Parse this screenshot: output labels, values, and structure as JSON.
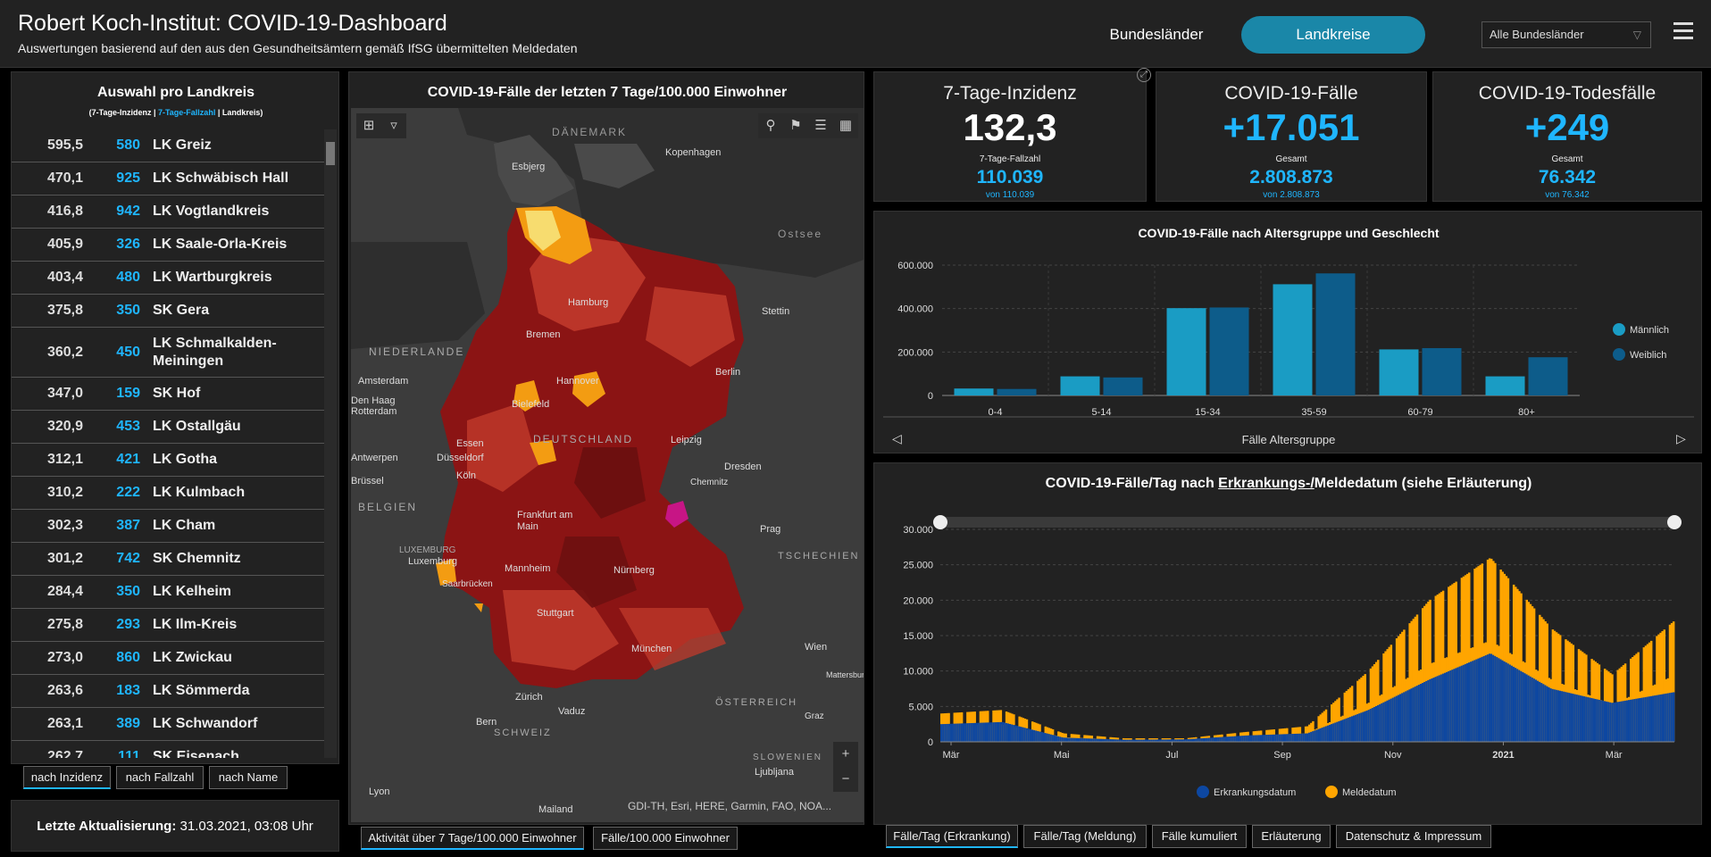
{
  "header": {
    "title": "Robert Koch-Institut: COVID-19-Dashboard",
    "subtitle": "Auswertungen basierend auf den aus den Gesundheitsämtern gemäß IfSG übermittelten Meldedaten",
    "nav_bundeslaender": "Bundesländer",
    "nav_landkreise": "Landkreise",
    "region_select": "Alle Bundesländer"
  },
  "list": {
    "title": "Auswahl pro Landkreis",
    "legend_a": "(7-Tage-Inzidenz | ",
    "legend_b": "7-Tage-Fallzahl",
    "legend_c": " | Landkreis)",
    "rows": [
      {
        "inc": "595,5",
        "cases": "580",
        "name": "LK Greiz"
      },
      {
        "inc": "470,1",
        "cases": "925",
        "name": "LK Schwäbisch Hall"
      },
      {
        "inc": "416,8",
        "cases": "942",
        "name": "LK Vogtlandkreis"
      },
      {
        "inc": "405,9",
        "cases": "326",
        "name": "LK Saale-Orla-Kreis"
      },
      {
        "inc": "403,4",
        "cases": "480",
        "name": "LK Wartburgkreis"
      },
      {
        "inc": "375,8",
        "cases": "350",
        "name": "SK Gera"
      },
      {
        "inc": "360,2",
        "cases": "450",
        "name": "LK Schmalkalden-Meiningen"
      },
      {
        "inc": "347,0",
        "cases": "159",
        "name": "SK Hof"
      },
      {
        "inc": "320,9",
        "cases": "453",
        "name": "LK Ostallgäu"
      },
      {
        "inc": "312,1",
        "cases": "421",
        "name": "LK Gotha"
      },
      {
        "inc": "310,2",
        "cases": "222",
        "name": "LK Kulmbach"
      },
      {
        "inc": "302,3",
        "cases": "387",
        "name": "LK Cham"
      },
      {
        "inc": "301,2",
        "cases": "742",
        "name": "SK Chemnitz"
      },
      {
        "inc": "284,4",
        "cases": "350",
        "name": "LK Kelheim"
      },
      {
        "inc": "275,8",
        "cases": "293",
        "name": "LK Ilm-Kreis"
      },
      {
        "inc": "273,0",
        "cases": "860",
        "name": "LK Zwickau"
      },
      {
        "inc": "263,6",
        "cases": "183",
        "name": "LK Sömmerda"
      },
      {
        "inc": "263,1",
        "cases": "389",
        "name": "LK Schwandorf"
      },
      {
        "inc": "262,7",
        "cases": "111",
        "name": "SK Eisenach"
      }
    ],
    "tabs": [
      "nach Inzidenz",
      "nach Fallzahl",
      "nach Name"
    ]
  },
  "update": {
    "label": "Letzte Aktualisierung:",
    "value": " 31.03.2021, 03:08 Uhr"
  },
  "map": {
    "title": "COVID-19-Fälle der letzten 7 Tage/100.000 Einwohner",
    "attribution": "GDI-TH, Esri, HERE, Garmin, FAO, NOA...",
    "tabs": [
      "Aktivität über 7 Tage/100.000 Einwohner",
      "Fälle/100.000 Einwohner"
    ],
    "labels": {
      "daenemark": "DÄNEMARK",
      "kopenhagen": "Kopenhagen",
      "esbjerg": "Esbjerg",
      "ostsee": "Ostsee",
      "hamburg": "Hamburg",
      "stettin": "Stettin",
      "bremen": "Bremen",
      "niederlande": "NIEDERLANDE",
      "amsterdam": "Amsterdam",
      "hannover": "Hannover",
      "berlin": "Berlin",
      "denhaag": "Den Haag",
      "rotterdam": "Rotterdam",
      "bielefeld": "Bielefeld",
      "deutschland": "DEUTSCHLAND",
      "essen": "Essen",
      "duesseldorf": "Düsseldorf",
      "leipzig": "Leipzig",
      "antwerpen": "Antwerpen",
      "dresden": "Dresden",
      "koeln": "Köln",
      "chemnitz": "Chemnitz",
      "bruessel": "Brüssel",
      "belgien": "BELGIEN",
      "frankfurt": "Frankfurt am Main",
      "prag": "Prag",
      "luxemburg_c": "LUXEMBURG",
      "luxemburg": "Luxemburg",
      "tschechien": "TSCHECHIEN",
      "mannheim": "Mannheim",
      "nuernberg": "Nürnberg",
      "saarbruecken": "Saarbrücken",
      "stuttgart": "Stuttgart",
      "wien": "Wien",
      "mattersburg": "Mattersburg",
      "muenchen": "München",
      "zuerich": "Zürich",
      "oesterreich": "ÖSTERREICH",
      "vaduz": "Vaduz",
      "graz": "Graz",
      "bern": "Bern",
      "schweiz": "SCHWEIZ",
      "slowenien": "SLOWENIEN",
      "ljubljana": "Ljubljana",
      "lyon": "Lyon",
      "mailand": "Mailand"
    },
    "zoom_in": "+",
    "zoom_out": "−",
    "colors": {
      "land": "#3c3c3c",
      "sea": "#2e2e2e",
      "dark": "#8b1414",
      "mid": "#c0392b",
      "light": "#f39c12",
      "pale": "#f7dc6f",
      "hot": "#c71585"
    }
  },
  "kpis": [
    {
      "title": "7-Tage-Inzidenz",
      "value": "132,3",
      "sub": "7-Tage-Fallzahl",
      "subval": "110.039",
      "note": "von 110.039",
      "color": "#ffffff"
    },
    {
      "title": "COVID-19-Fälle",
      "value": "+17.051",
      "sub": "Gesamt",
      "subval": "2.808.873",
      "note": "von 2.808.873",
      "color": "#1fb6ff"
    },
    {
      "title": "COVID-19-Todesfälle",
      "value": "+249",
      "sub": "Gesamt",
      "subval": "76.342",
      "note": "von 76.342",
      "color": "#1fb6ff"
    }
  ],
  "age_chart": {
    "title": "COVID-19-Fälle nach Altersgruppe und Geschlecht",
    "xlabel": "Fälle Altersgruppe"
  },
  "daily_chart": {
    "title_a": "COVID-19-Fälle/Tag nach ",
    "title_u": "Erkrankungs-/",
    "title_b": "Meldedatum (siehe Erläuterung)",
    "tabs": [
      "Fälle/Tag (Erkrankung)",
      "Fälle/Tag (Meldung)",
      "Fälle kumuliert",
      "Erläuterung",
      "Datenschutz & Impressum"
    ]
  },
  "chart_data": [
    {
      "type": "bar",
      "title": "COVID-19-Fälle nach Altersgruppe und Geschlecht",
      "xlabel": "Fälle Altersgruppe",
      "ylabel": "",
      "categories": [
        "0-4",
        "5-14",
        "15-34",
        "35-59",
        "60-79",
        "80+"
      ],
      "series": [
        {
          "name": "Männlich",
          "values": [
            32000,
            88000,
            402000,
            512000,
            212000,
            88000
          ],
          "color": "#1a9cc4"
        },
        {
          "name": "Weiblich",
          "values": [
            30000,
            83000,
            405000,
            562000,
            218000,
            176000
          ],
          "color": "#0d5c8a"
        }
      ],
      "ylim": [
        0,
        600000
      ],
      "yticks": [
        "0",
        "200.000",
        "400.000",
        "600.000"
      ],
      "legend": "right",
      "grid": true
    },
    {
      "type": "area",
      "title": "COVID-19-Fälle/Tag nach Erkrankungs-/Meldedatum (siehe Erläuterung)",
      "xlabel": "",
      "ylabel": "",
      "x_ticks": [
        "Mär",
        "Mai",
        "Jul",
        "Sep",
        "Nov",
        "2021",
        "Mär"
      ],
      "yticks": [
        "0",
        "5.000",
        "10.000",
        "15.000",
        "20.000",
        "25.000",
        "30.000"
      ],
      "ylim": [
        0,
        30000
      ],
      "series": [
        {
          "name": "Erkrankungsdatum",
          "color": "#0d47a1",
          "x": [
            "2020-03",
            "2020-04",
            "2020-05",
            "2020-06",
            "2020-07",
            "2020-08",
            "2020-09",
            "2020-10",
            "2020-11",
            "2020-12",
            "2021-01",
            "2021-02",
            "2021-03"
          ],
          "values": [
            2500,
            2800,
            600,
            300,
            350,
            900,
            1200,
            4500,
            8800,
            12500,
            7500,
            5500,
            7000
          ]
        },
        {
          "name": "Meldedatum",
          "color": "#ffa500",
          "x": [
            "2020-03",
            "2020-04",
            "2020-05",
            "2020-06",
            "2020-07",
            "2020-08",
            "2020-09",
            "2020-10",
            "2020-11",
            "2020-12",
            "2021-01",
            "2021-02",
            "2021-03"
          ],
          "values": [
            4000,
            4500,
            1200,
            500,
            500,
            1400,
            2200,
            10000,
            20000,
            26000,
            16000,
            9500,
            17000
          ]
        }
      ],
      "legend": "bottom",
      "grid": true
    }
  ]
}
